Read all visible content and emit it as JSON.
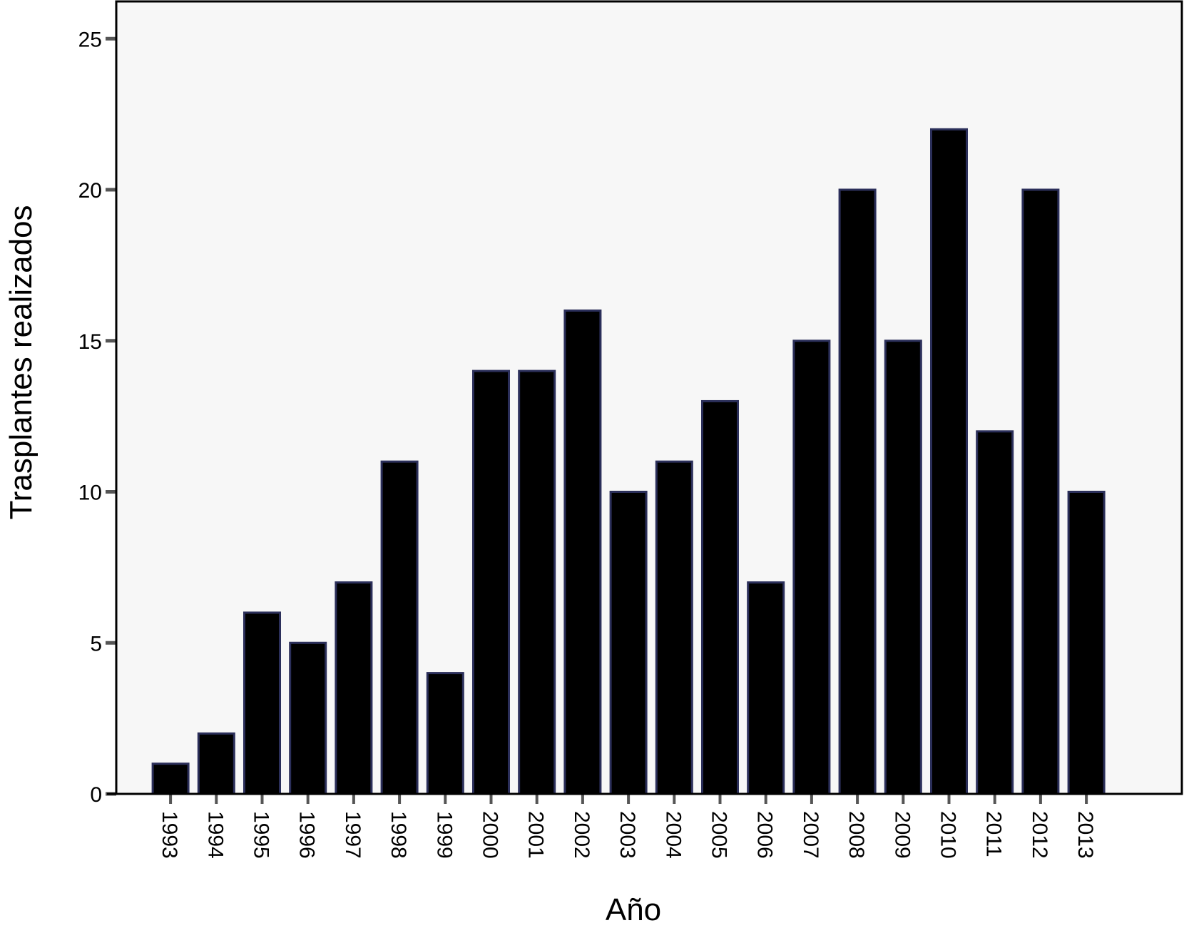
{
  "chart_data": {
    "type": "bar",
    "title": "",
    "xlabel": "Año",
    "ylabel": "Trasplantes realizados",
    "ylim": [
      0,
      26
    ],
    "yticks": [
      0,
      5,
      10,
      15,
      20,
      25
    ],
    "grid": false,
    "legend": "none",
    "categories": [
      "1993",
      "1994",
      "1995",
      "1996",
      "1997",
      "1998",
      "1999",
      "2000",
      "2001",
      "2002",
      "2003",
      "2004",
      "2005",
      "2006",
      "2007",
      "2008",
      "2009",
      "2010",
      "2011",
      "2012",
      "2013"
    ],
    "values": [
      1,
      2,
      6,
      5,
      7,
      11,
      4,
      14,
      14,
      16,
      10,
      11,
      13,
      7,
      15,
      20,
      15,
      22,
      12,
      20,
      10
    ],
    "colors": {
      "bar_fill": "#000000",
      "bar_edge": "#2b2f5a",
      "plot_bg": "#f7f7f7",
      "axis": "#000000",
      "tick": "#555555"
    }
  }
}
